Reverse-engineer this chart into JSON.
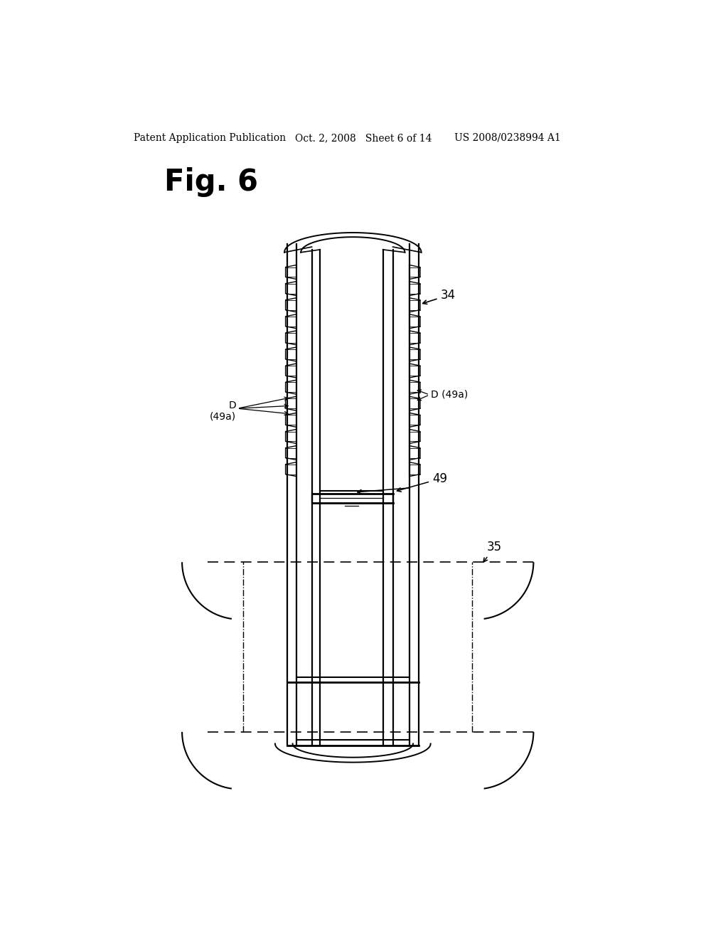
{
  "bg_color": "#ffffff",
  "line_color": "#000000",
  "header_left": "Patent Application Publication",
  "header_mid": "Oct. 2, 2008   Sheet 6 of 14",
  "header_right": "US 2008/0238994 A1",
  "fig_title": "Fig. 6",
  "label_34": "34",
  "label_35": "35",
  "label_49": "49",
  "label_49a_left": "D\n(49a)",
  "label_49a_right": "D (49a)"
}
